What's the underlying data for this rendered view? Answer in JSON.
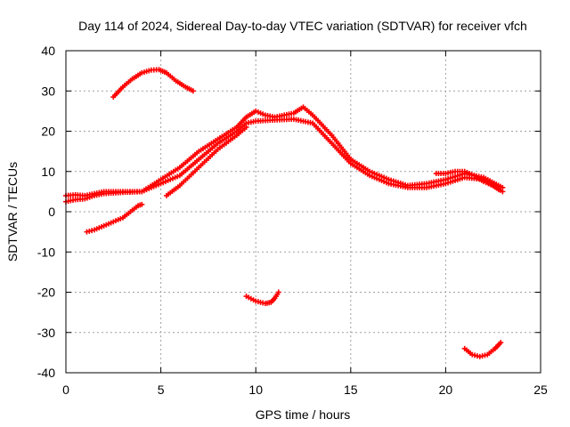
{
  "chart_data": {
    "type": "scatter",
    "title": "Day 114 of 2024, Sidereal Day-to-day VTEC variation (SDTVAR) for receiver vfch",
    "xlabel": "GPS time / hours",
    "ylabel": "SDTVAR / TECUs",
    "xlim": [
      0,
      25
    ],
    "ylim": [
      -40,
      40
    ],
    "xticks": [
      0,
      5,
      10,
      15,
      20,
      25
    ],
    "yticks": [
      -40,
      -30,
      -20,
      -10,
      0,
      10,
      20,
      30,
      40
    ],
    "grid": true,
    "marker_color": "#ff0000",
    "series": [
      {
        "name": "main-trace-low",
        "points": [
          [
            0,
            2.5
          ],
          [
            0.5,
            3.0
          ],
          [
            1.0,
            3.2
          ],
          [
            1.5,
            4.0
          ],
          [
            2.0,
            4.5
          ],
          [
            3.0,
            4.8
          ],
          [
            4.0,
            5.0
          ],
          [
            5.0,
            7.0
          ],
          [
            6.0,
            9.0
          ],
          [
            7.0,
            13.0
          ],
          [
            8.0,
            17.0
          ],
          [
            9.0,
            20.0
          ],
          [
            9.5,
            22.0
          ],
          [
            10.0,
            22.5
          ],
          [
            11.0,
            22.8
          ],
          [
            12.0,
            23.0
          ],
          [
            13.0,
            22.0
          ],
          [
            14.0,
            17.0
          ],
          [
            15.0,
            12.0
          ],
          [
            16.0,
            9.0
          ],
          [
            17.0,
            7.0
          ],
          [
            18.0,
            6.0
          ],
          [
            19.0,
            6.0
          ],
          [
            20.0,
            7.0
          ],
          [
            21.0,
            8.5
          ],
          [
            22.0,
            8.0
          ],
          [
            23.0,
            5.0
          ]
        ]
      },
      {
        "name": "main-trace-high",
        "points": [
          [
            0,
            4.0
          ],
          [
            0.5,
            4.2
          ],
          [
            1.0,
            4.0
          ],
          [
            1.5,
            4.5
          ],
          [
            2.0,
            5.0
          ],
          [
            3.0,
            5.0
          ],
          [
            4.0,
            5.0
          ],
          [
            5.0,
            8.0
          ],
          [
            6.0,
            11.0
          ],
          [
            7.0,
            15.0
          ],
          [
            8.0,
            18.0
          ],
          [
            9.0,
            21.0
          ],
          [
            9.5,
            23.5
          ],
          [
            10.0,
            25.0
          ],
          [
            10.5,
            24.0
          ],
          [
            11.0,
            23.5
          ],
          [
            12.0,
            24.5
          ],
          [
            12.5,
            26.0
          ],
          [
            13.0,
            24.0
          ],
          [
            14.0,
            19.0
          ],
          [
            15.0,
            13.0
          ],
          [
            16.0,
            10.0
          ],
          [
            17.0,
            8.0
          ],
          [
            18.0,
            6.5
          ],
          [
            19.0,
            7.0
          ],
          [
            20.0,
            8.0
          ],
          [
            21.0,
            9.5
          ],
          [
            22.0,
            8.5
          ],
          [
            23.0,
            6.0
          ]
        ]
      },
      {
        "name": "branch-rising",
        "points": [
          [
            5.3,
            4.0
          ],
          [
            6.0,
            6.5
          ],
          [
            7.0,
            11.0
          ],
          [
            8.0,
            15.5
          ],
          [
            9.0,
            19.0
          ],
          [
            9.5,
            21.0
          ]
        ]
      },
      {
        "name": "branch-late",
        "points": [
          [
            19.5,
            9.5
          ],
          [
            20.0,
            9.5
          ],
          [
            20.5,
            10.0
          ],
          [
            21.0,
            10.0
          ],
          [
            21.5,
            9.0
          ],
          [
            22.0,
            7.5
          ],
          [
            22.5,
            6.5
          ],
          [
            22.8,
            5.5
          ]
        ]
      },
      {
        "name": "arc-high",
        "points": [
          [
            2.5,
            28.5
          ],
          [
            3.0,
            31.0
          ],
          [
            3.5,
            33.0
          ],
          [
            4.0,
            34.5
          ],
          [
            4.5,
            35.2
          ],
          [
            4.9,
            35.3
          ],
          [
            5.3,
            34.5
          ],
          [
            5.8,
            32.5
          ],
          [
            6.3,
            31.0
          ],
          [
            6.7,
            30.0
          ]
        ]
      },
      {
        "name": "low-segment",
        "points": [
          [
            1.1,
            -5.0
          ],
          [
            1.5,
            -4.5
          ],
          [
            2.0,
            -3.5
          ],
          [
            2.5,
            -2.5
          ],
          [
            3.0,
            -1.5
          ],
          [
            3.4,
            0.0
          ],
          [
            3.8,
            1.5
          ],
          [
            4.0,
            1.8
          ]
        ]
      },
      {
        "name": "dip-mid",
        "points": [
          [
            9.5,
            -21.0
          ],
          [
            10.0,
            -22.2
          ],
          [
            10.5,
            -22.8
          ],
          [
            10.8,
            -22.5
          ],
          [
            11.0,
            -21.5
          ],
          [
            11.2,
            -20.0
          ]
        ]
      },
      {
        "name": "dip-late",
        "points": [
          [
            21.0,
            -34.0
          ],
          [
            21.4,
            -35.5
          ],
          [
            21.8,
            -36.0
          ],
          [
            22.2,
            -35.5
          ],
          [
            22.6,
            -34.0
          ],
          [
            22.9,
            -32.5
          ]
        ]
      }
    ]
  }
}
